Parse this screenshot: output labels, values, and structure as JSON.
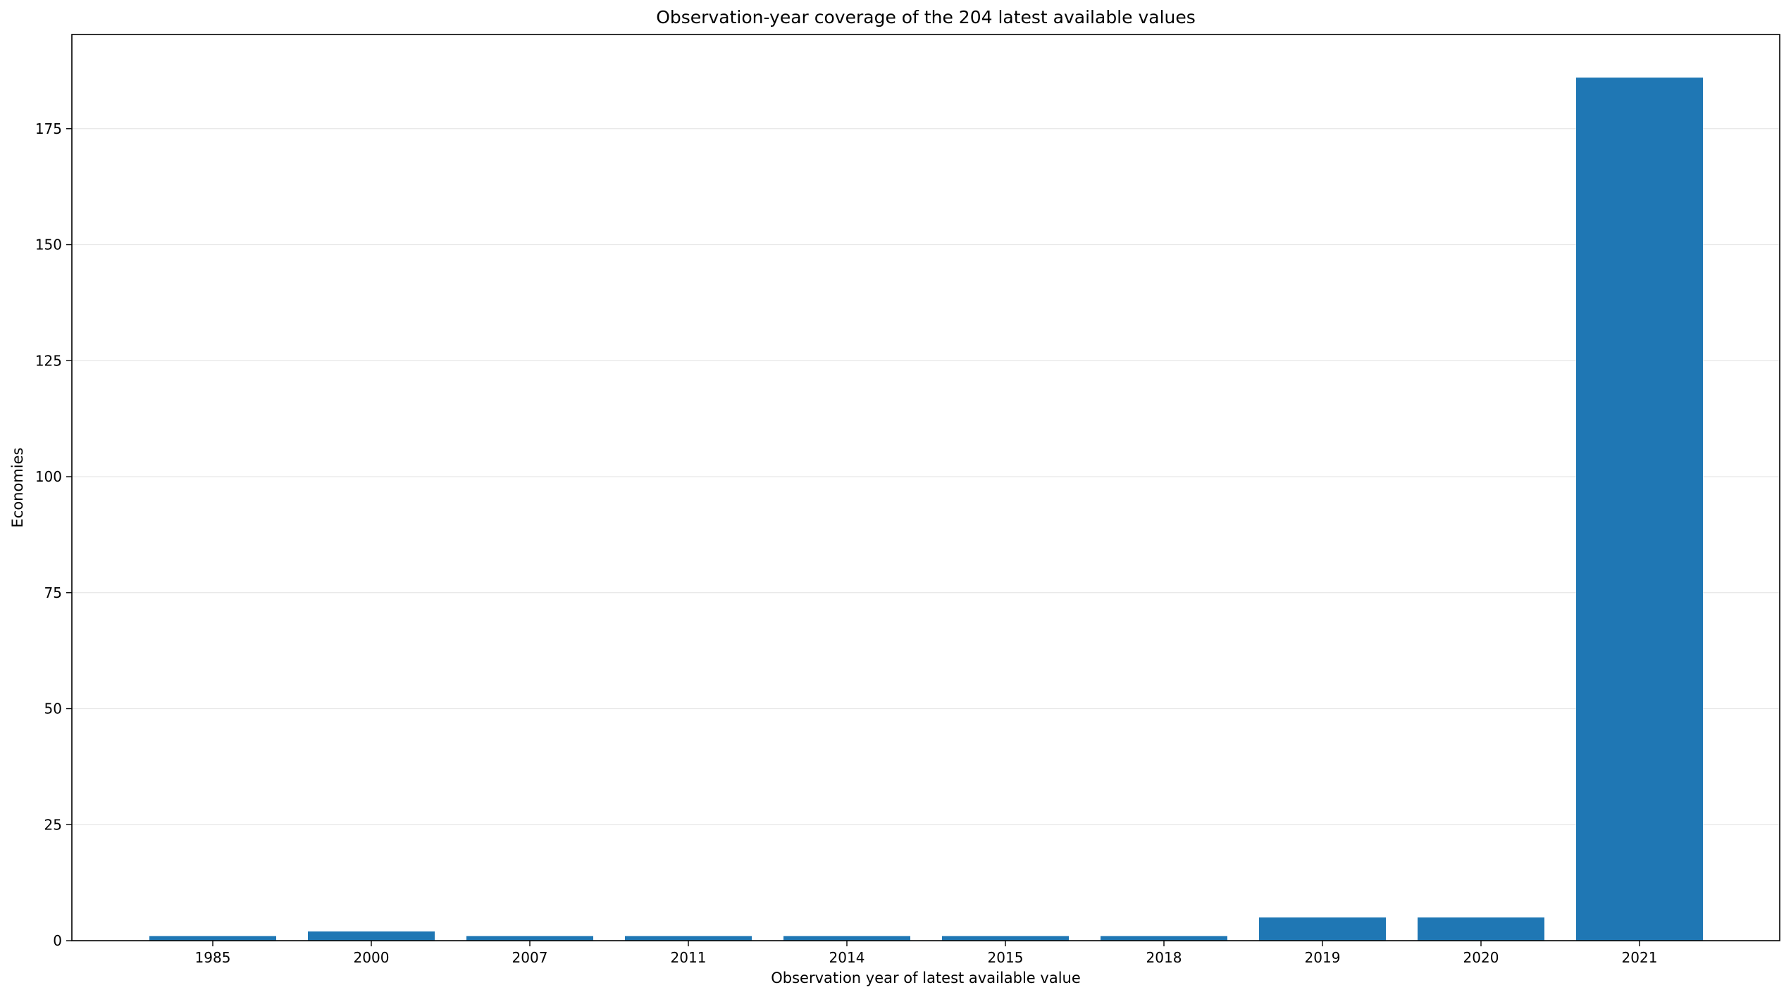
{
  "chart_data": {
    "type": "bar",
    "title": "Observation-year coverage of the 204 latest available values",
    "xlabel": "Observation year of latest available value",
    "ylabel": "Economies",
    "categories": [
      "1985",
      "2000",
      "2007",
      "2011",
      "2014",
      "2015",
      "2018",
      "2019",
      "2020",
      "2021"
    ],
    "values": [
      1,
      2,
      1,
      1,
      1,
      1,
      1,
      5,
      5,
      186
    ],
    "ylim": [
      0,
      195.3
    ],
    "yticks": [
      0,
      25,
      50,
      75,
      100,
      125,
      150,
      175
    ],
    "grid": "horizontal",
    "legend": "none",
    "bar_color": "#1f77b4",
    "grid_color": "#e6e6e6"
  }
}
